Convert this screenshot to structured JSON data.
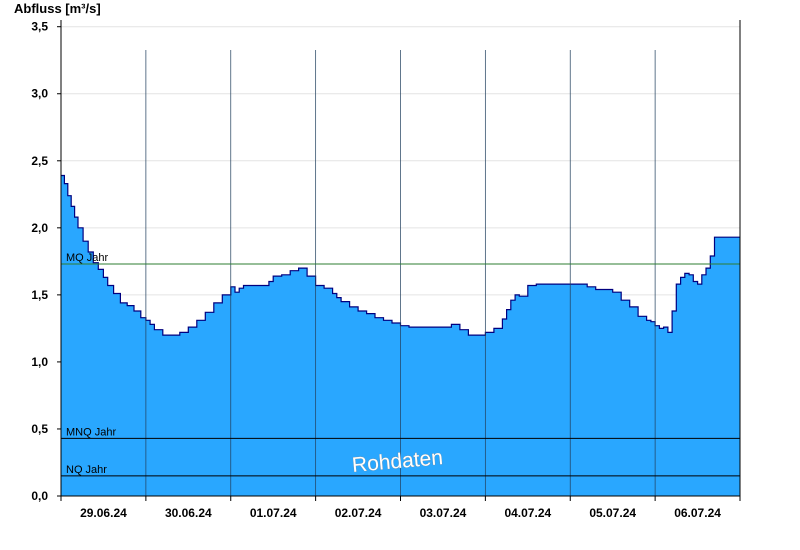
{
  "chart_data": {
    "type": "area",
    "ylabel": "Abfluss [m³/s]",
    "ylim": [
      0,
      3.55
    ],
    "yticks": [
      {
        "value": 0.0,
        "label": "0,0"
      },
      {
        "value": 0.5,
        "label": "0,5"
      },
      {
        "value": 1.0,
        "label": "1,0"
      },
      {
        "value": 1.5,
        "label": "1,5"
      },
      {
        "value": 2.0,
        "label": "2,0"
      },
      {
        "value": 2.5,
        "label": "2,5"
      },
      {
        "value": 3.0,
        "label": "3,0"
      },
      {
        "value": 3.5,
        "label": "3,5"
      }
    ],
    "xlim": [
      0,
      8
    ],
    "xticks": [
      "29.06.24",
      "30.06.24",
      "01.07.24",
      "02.07.24",
      "03.07.24",
      "04.07.24",
      "05.07.24",
      "06.07.24"
    ],
    "grid": true,
    "colors": {
      "fill": "#29a7ff",
      "line": "#00007f",
      "mq": "#2e7d32",
      "ref": "#000000",
      "grid": "#e4e4e4"
    },
    "reference_lines": [
      {
        "name": "MQ Jahr",
        "value": 1.73
      },
      {
        "name": "MNQ Jahr",
        "value": 0.43
      },
      {
        "name": "NQ Jahr",
        "value": 0.15
      }
    ],
    "watermark": "Rohdaten",
    "series": [
      {
        "x": [
          0,
          0.04,
          0.08,
          0.12,
          0.16,
          0.2,
          0.26,
          0.32,
          0.38,
          0.44,
          0.5,
          0.55,
          0.62,
          0.7,
          0.78,
          0.86,
          0.94,
          1.0,
          1.05,
          1.1,
          1.2,
          1.3,
          1.4,
          1.5,
          1.6,
          1.7,
          1.8,
          1.9,
          2.0,
          2.05,
          2.1,
          2.15,
          2.2,
          2.25,
          2.3,
          2.4,
          2.45,
          2.5,
          2.6,
          2.7,
          2.8,
          2.9,
          3.0,
          3.1,
          3.2,
          3.25,
          3.3,
          3.4,
          3.5,
          3.6,
          3.7,
          3.8,
          3.9,
          4.0,
          4.1,
          4.2,
          4.3,
          4.4,
          4.5,
          4.6,
          4.7,
          4.8,
          4.9,
          5.0,
          5.1,
          5.2,
          5.25,
          5.3,
          5.35,
          5.4,
          5.5,
          5.6,
          5.7,
          5.8,
          5.9,
          6.0,
          6.1,
          6.2,
          6.3,
          6.4,
          6.5,
          6.6,
          6.7,
          6.8,
          6.9,
          6.95,
          7.0,
          7.05,
          7.1,
          7.15,
          7.2,
          7.25,
          7.3,
          7.35,
          7.4,
          7.45,
          7.5,
          7.55,
          7.6,
          7.65,
          7.7,
          7.75,
          7.8,
          7.85,
          7.9,
          7.95,
          8.0
        ],
        "values": [
          2.39,
          2.33,
          2.24,
          2.16,
          2.08,
          2.0,
          1.9,
          1.82,
          1.74,
          1.69,
          1.63,
          1.57,
          1.51,
          1.44,
          1.42,
          1.38,
          1.33,
          1.31,
          1.28,
          1.24,
          1.2,
          1.2,
          1.22,
          1.26,
          1.31,
          1.37,
          1.44,
          1.5,
          1.56,
          1.52,
          1.55,
          1.57,
          1.57,
          1.57,
          1.57,
          1.57,
          1.6,
          1.64,
          1.65,
          1.68,
          1.7,
          1.64,
          1.57,
          1.55,
          1.51,
          1.48,
          1.45,
          1.41,
          1.38,
          1.36,
          1.33,
          1.31,
          1.29,
          1.27,
          1.26,
          1.26,
          1.26,
          1.26,
          1.26,
          1.28,
          1.24,
          1.2,
          1.2,
          1.22,
          1.25,
          1.32,
          1.39,
          1.46,
          1.5,
          1.49,
          1.57,
          1.58,
          1.58,
          1.58,
          1.58,
          1.58,
          1.58,
          1.56,
          1.54,
          1.54,
          1.52,
          1.46,
          1.41,
          1.34,
          1.31,
          1.3,
          1.27,
          1.25,
          1.26,
          1.22,
          1.38,
          1.58,
          1.63,
          1.66,
          1.65,
          1.6,
          1.58,
          1.65,
          1.7,
          1.79,
          1.93,
          1.93,
          1.93,
          1.93,
          1.93,
          1.93,
          1.93
        ]
      }
    ]
  }
}
